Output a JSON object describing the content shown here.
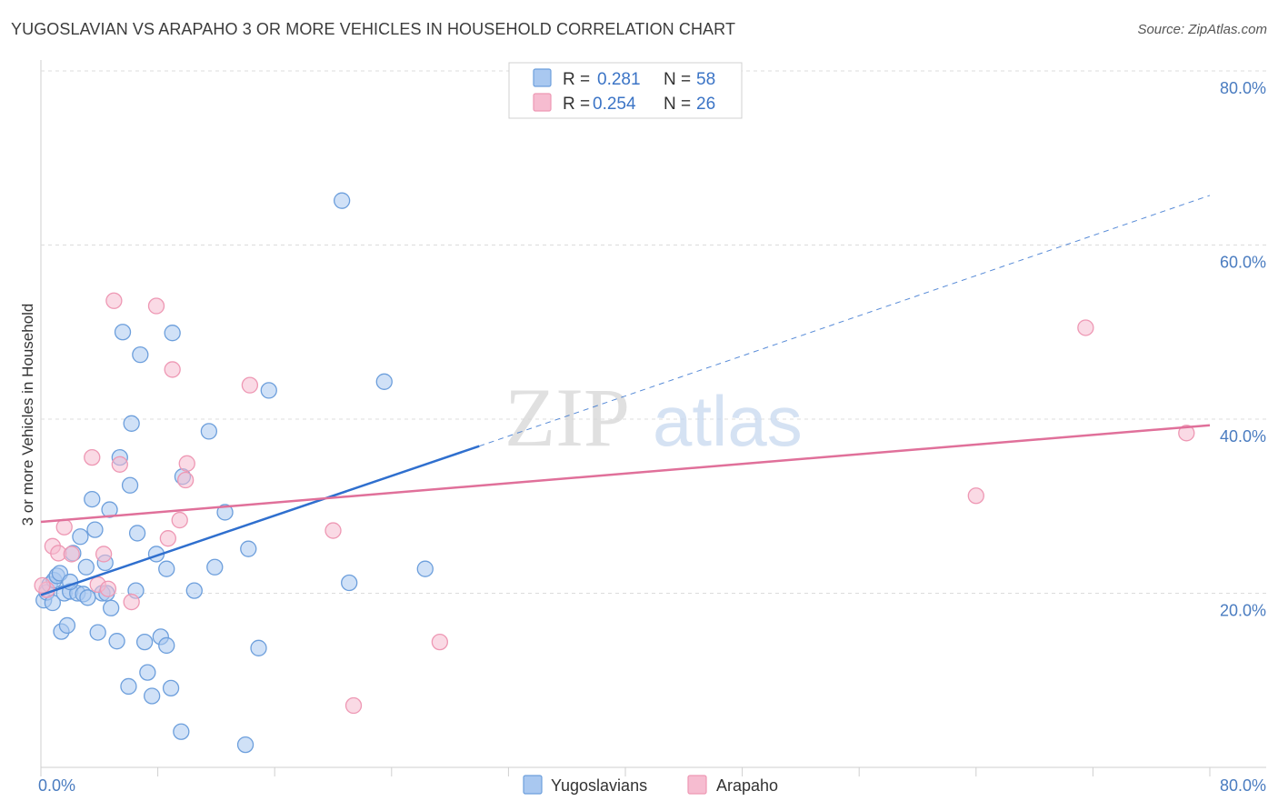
{
  "colors": {
    "blue_fill": "#a9c8f0",
    "blue_stroke": "#6d9fdc",
    "blue_line": "#2f6fce",
    "pink_fill": "#f6bcd0",
    "pink_stroke": "#ee98b4",
    "pink_line": "#e0709a",
    "tick_text": "#4a7cc0",
    "grid": "#dcdcdc"
  },
  "chart_data": {
    "type": "scatter",
    "title": "YUGOSLAVIAN VS ARAPAHO 3 OR MORE VEHICLES IN HOUSEHOLD CORRELATION CHART",
    "source": "Source: ZipAtlas.com",
    "ylabel": "3 or more Vehicles in Household",
    "xlim": [
      0,
      80
    ],
    "ylim": [
      0,
      80
    ],
    "x_tick_labels": [
      "0.0%",
      "80.0%"
    ],
    "y_ticks": [
      20,
      40,
      60,
      80
    ],
    "y_tick_labels": [
      "20.0%",
      "40.0%",
      "60.0%",
      "80.0%"
    ],
    "watermark": {
      "zip": "ZIP",
      "atlas": "atlas"
    },
    "legend": [
      {
        "r_label": "R =",
        "r_value": "0.281",
        "n_label": "N =",
        "n_value": "58"
      },
      {
        "r_label": "R =",
        "r_value": "0.254",
        "n_label": "N =",
        "n_value": "26"
      }
    ],
    "series": [
      {
        "name": "Yugoslavians",
        "trend": {
          "x0": 0,
          "y0": 19.8,
          "x1": 30,
          "y1": 36.9,
          "dash_x1": 80,
          "dash_y1": 65.7
        },
        "points": [
          [
            0.2,
            19.2
          ],
          [
            0.4,
            20.1
          ],
          [
            0.6,
            21.0
          ],
          [
            0.8,
            18.9
          ],
          [
            0.9,
            21.5
          ],
          [
            1.1,
            22.0
          ],
          [
            1.3,
            22.3
          ],
          [
            1.4,
            15.6
          ],
          [
            1.6,
            20.0
          ],
          [
            1.8,
            16.3
          ],
          [
            2.0,
            20.2
          ],
          [
            2.2,
            24.6
          ],
          [
            2.5,
            20.0
          ],
          [
            2.7,
            26.5
          ],
          [
            2.9,
            19.9
          ],
          [
            3.1,
            23.0
          ],
          [
            3.2,
            19.5
          ],
          [
            3.5,
            30.8
          ],
          [
            3.7,
            27.3
          ],
          [
            3.9,
            15.5
          ],
          [
            4.2,
            20.0
          ],
          [
            4.4,
            23.5
          ],
          [
            4.7,
            29.6
          ],
          [
            4.8,
            18.3
          ],
          [
            5.2,
            14.5
          ],
          [
            5.4,
            35.6
          ],
          [
            6.0,
            9.3
          ],
          [
            6.1,
            32.4
          ],
          [
            6.2,
            39.5
          ],
          [
            6.6,
            26.9
          ],
          [
            6.5,
            20.3
          ],
          [
            6.8,
            47.4
          ],
          [
            7.1,
            14.4
          ],
          [
            7.3,
            10.9
          ],
          [
            7.6,
            8.2
          ],
          [
            7.9,
            24.5
          ],
          [
            8.2,
            15.0
          ],
          [
            8.6,
            14.0
          ],
          [
            8.6,
            22.8
          ],
          [
            8.9,
            9.1
          ],
          [
            9.0,
            49.9
          ],
          [
            9.6,
            4.1
          ],
          [
            9.7,
            33.4
          ],
          [
            10.5,
            20.3
          ],
          [
            11.5,
            38.6
          ],
          [
            11.9,
            23.0
          ],
          [
            12.6,
            29.3
          ],
          [
            14.0,
            2.6
          ],
          [
            14.2,
            25.1
          ],
          [
            14.9,
            13.7
          ],
          [
            15.6,
            43.3
          ],
          [
            20.6,
            65.1
          ],
          [
            21.1,
            21.2
          ],
          [
            23.5,
            44.3
          ],
          [
            26.3,
            22.8
          ],
          [
            5.6,
            50.0
          ],
          [
            2.0,
            21.3
          ],
          [
            4.5,
            20.0
          ]
        ]
      },
      {
        "name": "Arapaho",
        "trend": {
          "x0": 0,
          "y0": 28.2,
          "x1": 80,
          "y1": 39.3
        },
        "points": [
          [
            0.4,
            20.4
          ],
          [
            0.8,
            25.4
          ],
          [
            1.2,
            24.6
          ],
          [
            1.6,
            27.6
          ],
          [
            2.1,
            24.5
          ],
          [
            3.5,
            35.6
          ],
          [
            3.9,
            21.0
          ],
          [
            4.3,
            24.5
          ],
          [
            4.6,
            20.5
          ],
          [
            5.0,
            53.6
          ],
          [
            5.4,
            34.8
          ],
          [
            6.2,
            19.0
          ],
          [
            7.9,
            53.0
          ],
          [
            8.7,
            26.3
          ],
          [
            9.0,
            45.7
          ],
          [
            9.5,
            28.4
          ],
          [
            9.9,
            33.0
          ],
          [
            10.0,
            34.9
          ],
          [
            14.3,
            43.9
          ],
          [
            20.0,
            27.2
          ],
          [
            21.4,
            7.1
          ],
          [
            27.3,
            14.4
          ],
          [
            64.0,
            31.2
          ],
          [
            71.5,
            50.5
          ],
          [
            78.4,
            38.4
          ],
          [
            0.1,
            20.9
          ]
        ]
      }
    ]
  }
}
